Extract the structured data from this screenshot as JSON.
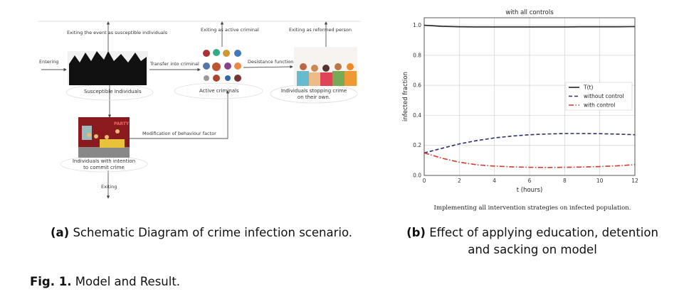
{
  "diagram": {
    "nodes": {
      "susceptible": "Susceptible Individuals",
      "active": "Active criminals",
      "reformed_line1": "Individuals stopping crime",
      "reformed_line2": "on their own.",
      "intention_line1": "Individuals with intention",
      "intention_line2": "to commit crime"
    },
    "edges": {
      "exit_susceptible": "Exiting the event as susceptible individuals",
      "exit_active": "Exiting as active criminal",
      "exit_reformed": "Exiting as reformed person",
      "entering": "Entering",
      "transfer": "Transfer into criminal",
      "desistance": "Desistance function",
      "modification": "Modification of behaviour factor",
      "exiting": "Exiting"
    },
    "party_sign": "PARTY"
  },
  "captions": {
    "a_label": "(a)",
    "a_text": "Schematic Diagram of crime infection scenario.",
    "b_label": "(b)",
    "b_text1": "Effect of applying education, detention",
    "b_text2": "and sacking on model",
    "chart_caption": "Implementing all intervention strategies on infected population.",
    "fig_label": "Fig. 1.",
    "fig_text": "Model and Result."
  },
  "chart_data": {
    "type": "line",
    "title": "with all controls",
    "xlabel": "t (hours)",
    "ylabel": "infected fraction",
    "xlim": [
      0,
      12
    ],
    "ylim": [
      0,
      1.05
    ],
    "xticks": [
      0,
      2,
      4,
      6,
      8,
      10,
      12
    ],
    "yticks": [
      0.0,
      0.2,
      0.4,
      0.6,
      0.8,
      1.0
    ],
    "ytick_labels": [
      "0.0",
      "0.2",
      "0.4",
      "0.6",
      "0.8",
      "1.0"
    ],
    "grid": true,
    "legend_position": "center-right",
    "x": [
      0,
      1,
      2,
      3,
      4,
      5,
      6,
      7,
      8,
      9,
      10,
      11,
      12
    ],
    "series": [
      {
        "name": "T(t)",
        "color": "#222222",
        "style": "solid",
        "values": [
          1.0,
          0.993,
          0.99,
          0.989,
          0.989,
          0.989,
          0.989,
          0.989,
          0.989,
          0.99,
          0.99,
          0.99,
          0.991
        ]
      },
      {
        "name": "without control",
        "color": "#2e2e6e",
        "style": "dashed",
        "values": [
          0.15,
          0.18,
          0.21,
          0.232,
          0.25,
          0.262,
          0.271,
          0.276,
          0.279,
          0.279,
          0.278,
          0.275,
          0.271
        ]
      },
      {
        "name": "with control",
        "color": "#d03a2f",
        "style": "dashdot",
        "values": [
          0.15,
          0.115,
          0.088,
          0.071,
          0.062,
          0.057,
          0.054,
          0.053,
          0.054,
          0.056,
          0.059,
          0.064,
          0.072
        ]
      }
    ]
  }
}
